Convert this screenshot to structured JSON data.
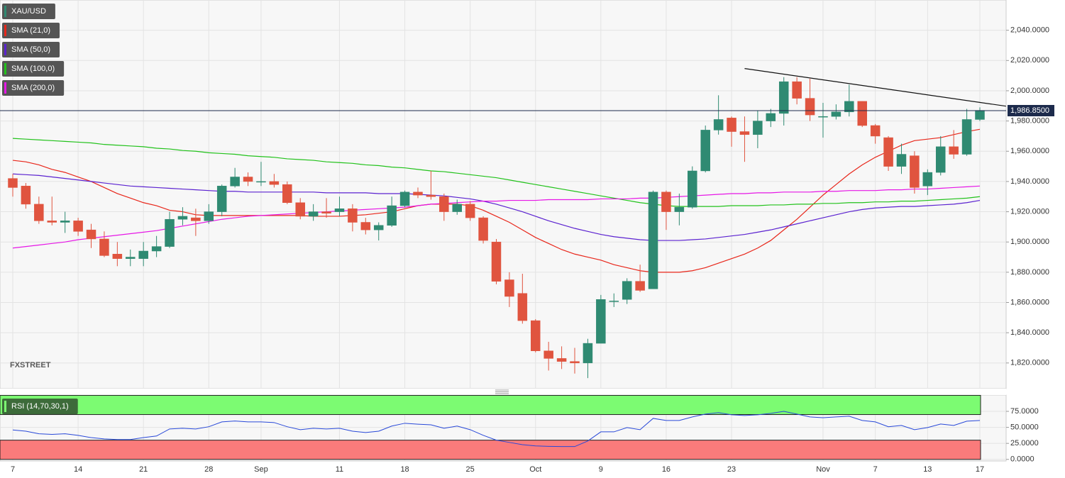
{
  "chart_data": [
    {
      "type": "candlestick",
      "symbol": "XAU/USD",
      "watermark": "FXSTREET",
      "up_color": "#2f8a72",
      "down_color": "#e0543f",
      "categories": [
        "7",
        null,
        null,
        null,
        null,
        "14",
        null,
        null,
        null,
        null,
        "21",
        null,
        null,
        null,
        null,
        "28",
        null,
        null,
        null,
        "Sep",
        null,
        null,
        null,
        null,
        null,
        "11",
        null,
        null,
        null,
        null,
        "18",
        null,
        null,
        null,
        null,
        "25",
        null,
        null,
        null,
        null,
        "Oct",
        null,
        null,
        null,
        null,
        "9",
        null,
        null,
        null,
        null,
        "16",
        null,
        null,
        null,
        null,
        "23",
        null,
        null,
        null,
        null,
        null,
        null,
        "Nov",
        null,
        null,
        null,
        "7",
        null,
        null,
        null,
        "13",
        null,
        null,
        null,
        "17"
      ],
      "open": [
        1942,
        1937,
        1925,
        1914,
        1913,
        1914,
        1908,
        1902,
        1892,
        1889,
        1889,
        1894,
        1897,
        1915,
        1916,
        1914,
        1920,
        1937,
        1943,
        1940,
        1940,
        1938,
        1926,
        1917,
        1920,
        1920,
        1922,
        1913,
        1908,
        1911,
        1924,
        1933,
        1931,
        1930,
        1920,
        1925,
        1916,
        1900,
        1875,
        1866,
        1848,
        1828,
        1823,
        1821,
        1820,
        1833,
        1861,
        1862,
        1874,
        1869,
        1933,
        1920,
        1923,
        1947,
        1974,
        1982,
        1973,
        1971,
        1980,
        1985,
        2006,
        1995,
        1983,
        1983,
        1986,
        1993,
        1977,
        1969,
        1950,
        1957,
        1937,
        1946,
        1963,
        1958,
        1981
      ],
      "high": [
        1945,
        1939,
        1930,
        1930,
        1920,
        1916,
        1912,
        1907,
        1900,
        1895,
        1900,
        1904,
        1920,
        1923,
        1922,
        1925,
        1938,
        1949,
        1946,
        1953,
        1945,
        1940,
        1929,
        1925,
        1929,
        1930,
        1925,
        1916,
        1913,
        1930,
        1934,
        1936,
        1947,
        1932,
        1928,
        1927,
        1917,
        1902,
        1880,
        1879,
        1849,
        1834,
        1831,
        1830,
        1836,
        1865,
        1866,
        1876,
        1885,
        1934,
        1934,
        1932,
        1950,
        1977,
        1997,
        1983,
        1983,
        1987,
        1988,
        2009,
        2009,
        2008,
        1992,
        1991,
        2004,
        1993,
        1978,
        1970,
        1965,
        1960,
        1948,
        1970,
        1974,
        1988,
        1989
      ],
      "low": [
        1930,
        1922,
        1912,
        1911,
        1906,
        1904,
        1896,
        1890,
        1884,
        1884,
        1884,
        1890,
        1896,
        1911,
        1904,
        1912,
        1917,
        1936,
        1937,
        1937,
        1936,
        1925,
        1915,
        1914,
        1916,
        1917,
        1907,
        1905,
        1901,
        1910,
        1923,
        1929,
        1928,
        1914,
        1918,
        1914,
        1899,
        1872,
        1857,
        1846,
        1827,
        1815,
        1816,
        1813,
        1810,
        1833,
        1857,
        1859,
        1867,
        1869,
        1908,
        1911,
        1922,
        1946,
        1971,
        1963,
        1953,
        1962,
        1976,
        1977,
        1991,
        1980,
        1969,
        1981,
        1983,
        1976,
        1965,
        1947,
        1945,
        1932,
        1931,
        1944,
        1955,
        1957,
        1980
      ],
      "close": [
        1936,
        1925,
        1914,
        1913,
        1914,
        1907,
        1902,
        1891,
        1889,
        1890,
        1894,
        1897,
        1915,
        1917,
        1914,
        1920,
        1937,
        1943,
        1940,
        1940,
        1938,
        1926,
        1917,
        1920,
        1919,
        1922,
        1913,
        1908,
        1911,
        1924,
        1933,
        1931,
        1930,
        1920,
        1925,
        1916,
        1901,
        1874,
        1864,
        1848,
        1828,
        1823,
        1821,
        1820,
        1833,
        1862,
        1861,
        1874,
        1868,
        1933,
        1920,
        1923,
        1947,
        1974,
        1981,
        1973,
        1971,
        1980,
        1985,
        2006,
        1995,
        1984,
        1983,
        1986,
        1993,
        1977,
        1970,
        1950,
        1958,
        1936,
        1946,
        1963,
        1958,
        1981,
        1987
      ],
      "series": [
        {
          "name": "SMA (21,0)",
          "color": "#e8261a",
          "values": [
            1954,
            1953,
            1951,
            1948,
            1946,
            1943,
            1940,
            1936,
            1932,
            1929,
            1926,
            1924,
            1921,
            1920,
            1918,
            1917.5,
            1917.5,
            1917.5,
            1917.5,
            1917.5,
            1917.5,
            1917.5,
            1917.5,
            1917,
            1917,
            1917,
            1917.5,
            1918,
            1919,
            1920,
            1922,
            1924,
            1925,
            1925,
            1925,
            1924,
            1921,
            1917,
            1913,
            1908,
            1903,
            1899,
            1895,
            1892,
            1890,
            1888,
            1885,
            1883,
            1881,
            1880,
            1880,
            1880,
            1881,
            1883,
            1886,
            1889,
            1892,
            1896,
            1901,
            1908,
            1915,
            1923,
            1931,
            1938,
            1945,
            1951,
            1956,
            1960,
            1964,
            1967,
            1968,
            1969,
            1971,
            1973,
            1974.5
          ]
        },
        {
          "name": "SMA (50,0)",
          "color": "#5b22d0",
          "values": [
            1945,
            1944.5,
            1944,
            1943,
            1942,
            1941,
            1940,
            1939,
            1938,
            1937,
            1936.5,
            1936,
            1935.5,
            1935,
            1934.5,
            1934,
            1933.5,
            1933.5,
            1933,
            1933,
            1933,
            1933,
            1933,
            1933,
            1932.5,
            1932.5,
            1932.5,
            1932.5,
            1932,
            1932,
            1932,
            1931.5,
            1931,
            1930.5,
            1929.5,
            1928.5,
            1927,
            1925,
            1922.5,
            1920,
            1917,
            1914,
            1911.5,
            1909,
            1907,
            1905,
            1903.5,
            1902.5,
            1901.5,
            1901,
            1901,
            1901,
            1901.5,
            1902,
            1903,
            1904,
            1905,
            1906.5,
            1908,
            1910,
            1912,
            1914,
            1916,
            1918,
            1920,
            1921.5,
            1922.5,
            1923,
            1923.5,
            1923.5,
            1924,
            1924.5,
            1925,
            1926,
            1927.5
          ]
        },
        {
          "name": "SMA (100,0)",
          "color": "#22c21b",
          "values": [
            1968.5,
            1968,
            1967.5,
            1967,
            1966.5,
            1966,
            1965.5,
            1964.5,
            1964,
            1963.5,
            1963,
            1962,
            1961.5,
            1960.5,
            1960,
            1959,
            1958.5,
            1958,
            1957,
            1956.5,
            1956,
            1955,
            1954.5,
            1954,
            1953,
            1952.5,
            1952,
            1951,
            1950.5,
            1949.5,
            1949,
            1948,
            1947,
            1946.5,
            1945.5,
            1944.5,
            1943.5,
            1942.5,
            1941,
            1939.5,
            1938,
            1936.5,
            1935,
            1933.5,
            1932,
            1930.5,
            1929,
            1927.5,
            1926,
            1925,
            1924,
            1923.5,
            1923.5,
            1923.5,
            1923.5,
            1924,
            1924,
            1924,
            1924.5,
            1924.5,
            1925,
            1925,
            1925.5,
            1925.5,
            1926,
            1926,
            1926.5,
            1926.5,
            1927,
            1927,
            1927.5,
            1928,
            1928.5,
            1929,
            1930
          ]
        },
        {
          "name": "SMA (200,0)",
          "color": "#e617e6",
          "values": [
            1896,
            1897,
            1898,
            1899,
            1900,
            1901.5,
            1902.5,
            1903.5,
            1904.5,
            1905.5,
            1906.5,
            1907.5,
            1909,
            1910.5,
            1912,
            1913.5,
            1915,
            1916,
            1917,
            1917.5,
            1918,
            1918.5,
            1919,
            1919.5,
            1920,
            1920.5,
            1921,
            1921.5,
            1922,
            1922.5,
            1923,
            1924,
            1925,
            1925.5,
            1926,
            1926.5,
            1927,
            1927,
            1927.5,
            1927.5,
            1927.5,
            1928,
            1928,
            1928,
            1928,
            1928.5,
            1928.5,
            1928.5,
            1929,
            1929,
            1929.5,
            1930,
            1930.5,
            1931,
            1931.5,
            1932,
            1932,
            1932.5,
            1932.5,
            1933,
            1933,
            1933,
            1933.5,
            1933.5,
            1934,
            1934,
            1934,
            1934.5,
            1934.5,
            1935,
            1935,
            1935.5,
            1936,
            1936.5,
            1937
          ]
        }
      ],
      "trendline": {
        "x": [
          56,
          76
        ],
        "y": [
          2014.7,
          1989.8
        ]
      },
      "last_price": {
        "value": 1986.85,
        "label": "1,986.8500"
      },
      "ylim": [
        1803.5,
        2060
      ],
      "yticks": [
        {
          "value": 1820,
          "label": "1,820.0000"
        },
        {
          "value": 1840,
          "label": "1,840.0000"
        },
        {
          "value": 1860,
          "label": "1,860.0000"
        },
        {
          "value": 1880,
          "label": "1,880.0000"
        },
        {
          "value": 1900,
          "label": "1,900.0000"
        },
        {
          "value": 1920,
          "label": "1,920.0000"
        },
        {
          "value": 1940,
          "label": "1,940.0000"
        },
        {
          "value": 1960,
          "label": "1,960.0000"
        },
        {
          "value": 1980,
          "label": "1,980.0000"
        },
        {
          "value": 2000,
          "label": "2,000.0000"
        },
        {
          "value": 2020,
          "label": "2,020.0000"
        },
        {
          "value": 2040,
          "label": "2,040.0000"
        }
      ],
      "grid": true
    },
    {
      "type": "line",
      "series": [
        {
          "name": "RSI (14,70,30,1)",
          "color": "#2848d8",
          "values": [
            46,
            44,
            40,
            39,
            40,
            37.5,
            34,
            32,
            31,
            31,
            34,
            36.5,
            47.5,
            48.6,
            47.5,
            51,
            58.5,
            60,
            58.5,
            58.5,
            57.5,
            51,
            46.4,
            48.6,
            47.5,
            48.6,
            44,
            42,
            44,
            52,
            56.4,
            55,
            54,
            48.6,
            52,
            46.4,
            37.6,
            30,
            26.5,
            23,
            21,
            20.4,
            20,
            20,
            28.7,
            43,
            43,
            49.7,
            46.4,
            64,
            60.8,
            60.8,
            66.3,
            70.7,
            73,
            69.6,
            68.5,
            69.6,
            71.8,
            75,
            70.7,
            66.3,
            65,
            66.3,
            67.4,
            60.8,
            58.5,
            51,
            53,
            46.4,
            49.7,
            55.2,
            53,
            59.7,
            60.8
          ]
        }
      ],
      "overbought": [
        70,
        100
      ],
      "oversold": [
        0,
        30
      ],
      "overbought_color": "#7cfb72",
      "oversold_color": "#fa7b7b",
      "ylim": [
        -2.5,
        100.5
      ],
      "yticks": [
        {
          "value": 0,
          "label": "0.0000"
        },
        {
          "value": 25,
          "label": "25.0000"
        },
        {
          "value": 50,
          "label": "50.0000"
        },
        {
          "value": 75,
          "label": "75.0000"
        }
      ],
      "grid": true
    }
  ]
}
